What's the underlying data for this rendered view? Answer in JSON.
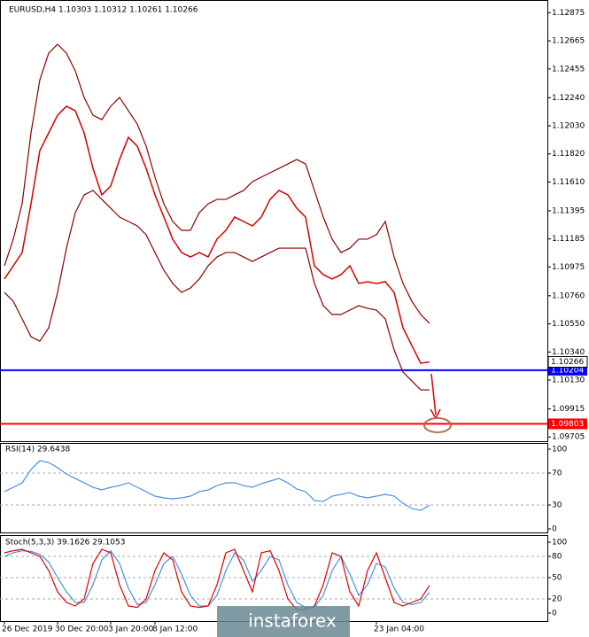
{
  "chart_data": [
    {
      "type": "line",
      "title": "EURUSD,H4  1.10303 1.10312 1.10261 1.10266",
      "categories": [
        "26 Dec 2019",
        null,
        null,
        null,
        null,
        null,
        "30 Dec 20:00",
        null,
        null,
        null,
        null,
        null,
        "3 Jan 20:00",
        null,
        null,
        null,
        null,
        "8 Jan 12:00",
        null,
        null,
        null,
        null,
        null,
        null,
        null,
        null,
        null,
        null,
        null,
        null,
        null,
        null,
        null,
        null,
        null,
        null,
        null,
        null,
        null,
        null,
        null,
        null,
        "23 Jan 04:00",
        null,
        null,
        null,
        null,
        null,
        null
      ],
      "series": [
        {
          "color": "#d40000",
          "values": [
            1.10885,
            1.10984,
            1.11083,
            1.11447,
            1.11845,
            1.11977,
            1.12109,
            1.12176,
            1.12143,
            1.11977,
            1.11712,
            1.11514,
            1.1158,
            1.11778,
            1.11944,
            1.11878,
            1.11712,
            1.11514,
            1.11348,
            1.11183,
            1.11083,
            1.1105,
            1.11083,
            1.1105,
            1.11183,
            1.11249,
            1.11348,
            1.11315,
            1.11282,
            1.11348,
            1.11481,
            1.11547,
            1.11514,
            1.11414,
            1.11348,
            1.10984,
            1.10918,
            1.10885,
            1.10918,
            1.10984,
            1.10852,
            1.10865,
            1.10852,
            1.10865,
            1.10785,
            1.10521,
            1.10388,
            1.10256,
            1.10266
          ]
        },
        {
          "color": "#8b0000",
          "values": [
            1.10984,
            1.11183,
            1.11447,
            1.11977,
            1.12374,
            1.12573,
            1.12639,
            1.12573,
            1.1244,
            1.12242,
            1.12109,
            1.12076,
            1.12176,
            1.12242,
            1.12142,
            1.12043,
            1.11878,
            1.11646,
            1.11447,
            1.11315,
            1.11249,
            1.11249,
            1.11381,
            1.11447,
            1.1148,
            1.1148,
            1.11514,
            1.11547,
            1.11613,
            1.11646,
            1.11679,
            1.11712,
            1.11745,
            1.11778,
            1.11745,
            1.11547,
            1.11348,
            1.11183,
            1.11083,
            1.11116,
            1.11183,
            1.11183,
            1.11216,
            1.11315,
            1.1105,
            1.10852,
            1.10719,
            1.1062,
            1.10554
          ]
        },
        {
          "color": "#8b0000",
          "values": [
            1.10785,
            1.10719,
            1.10587,
            1.10454,
            1.10421,
            1.10521,
            1.10785,
            1.11116,
            1.11381,
            1.11514,
            1.11547,
            1.1148,
            1.11414,
            1.11348,
            1.11315,
            1.11282,
            1.11216,
            1.11083,
            1.10951,
            1.10852,
            1.10785,
            1.10818,
            1.10885,
            1.10984,
            1.1105,
            1.11083,
            1.11083,
            1.1105,
            1.11017,
            1.1105,
            1.11083,
            1.11116,
            1.11116,
            1.11116,
            1.11116,
            1.10852,
            1.10686,
            1.1062,
            1.1062,
            1.10653,
            1.10686,
            1.10666,
            1.10653,
            1.10587,
            1.10355,
            1.1019,
            1.10123,
            1.10057,
            1.10057
          ]
        }
      ],
      "ylim": [
        1.0968,
        1.1297
      ],
      "yticks": [
        1.12875,
        1.12665,
        1.12455,
        {
          "value": 1.1224,
          "label": "1.12240"
        },
        {
          "value": 1.1203,
          "label": "1.12030"
        },
        {
          "value": 1.1182,
          "label": "1.11820"
        },
        {
          "value": 1.1161,
          "label": "1.11610"
        },
        1.11395,
        1.11185,
        1.10975,
        {
          "value": 1.1076,
          "label": "1.10760"
        },
        {
          "value": 1.1055,
          "label": "1.10550"
        },
        {
          "value": 1.1034,
          "label": "1.10340"
        },
        {
          "value": 1.1013,
          "label": "1.10130"
        },
        1.09915,
        1.09705
      ],
      "levels": [
        {
          "value": 1.10204,
          "color": "#0000ff"
        },
        {
          "value": 1.09803,
          "color": "#ff0000"
        }
      ],
      "last_price": 1.10266
    },
    {
      "type": "line",
      "title": "RSI(14) 29.6438",
      "series": [
        {
          "color": "#4a90e2",
          "values": [
            46.7,
            52.2,
            57.8,
            74.4,
            85.6,
            83.3,
            76.7,
            68.9,
            63.3,
            57.8,
            52.2,
            48.9,
            52.2,
            54.4,
            57.8,
            52.2,
            46.7,
            41.1,
            38.9,
            37.8,
            38.9,
            41.1,
            46.7,
            48.9,
            54.4,
            57.8,
            57.8,
            54.4,
            52.2,
            56.7,
            60.0,
            63.3,
            57.8,
            50.0,
            46.7,
            35.6,
            34.4,
            41.1,
            43.3,
            45.6,
            41.1,
            38.9,
            41.1,
            43.3,
            41.1,
            32.2,
            25.6,
            23.3,
            29.6
          ]
        }
      ],
      "ylim": [
        0,
        100
      ],
      "yticks": [
        0,
        30,
        70,
        100
      ]
    },
    {
      "type": "line",
      "title": "Stoch(5,3,3) 39.1626 29.1053",
      "series": [
        {
          "color": "#4a90e2",
          "values": [
            80,
            85,
            88,
            87,
            83,
            72,
            50,
            30,
            15,
            15,
            40,
            75,
            88,
            70,
            35,
            12,
            15,
            40,
            70,
            80,
            55,
            25,
            10,
            10,
            25,
            60,
            85,
            75,
            45,
            60,
            80,
            75,
            40,
            15,
            8,
            8,
            25,
            60,
            80,
            55,
            25,
            40,
            70,
            65,
            35,
            15,
            12,
            15,
            29.1
          ]
        },
        {
          "color": "#e00000",
          "values": [
            85,
            88,
            90,
            85,
            80,
            60,
            30,
            15,
            10,
            20,
            70,
            90,
            85,
            40,
            10,
            8,
            20,
            60,
            85,
            75,
            30,
            10,
            8,
            10,
            40,
            85,
            90,
            60,
            30,
            85,
            88,
            60,
            20,
            5,
            5,
            10,
            40,
            85,
            80,
            30,
            10,
            60,
            85,
            50,
            15,
            10,
            15,
            20,
            39.2
          ]
        }
      ],
      "ylim": [
        0,
        100
      ],
      "yticks": [
        0,
        20,
        50,
        80,
        100
      ]
    }
  ],
  "watermark": "instaforex"
}
